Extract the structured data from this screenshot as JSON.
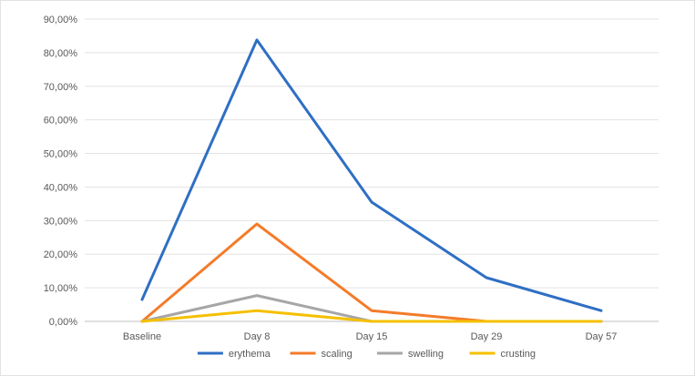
{
  "chart_data": {
    "type": "line",
    "title": "",
    "xlabel": "",
    "ylabel": "",
    "categories": [
      "Baseline",
      "Day 8",
      "Day 15",
      "Day 29",
      "Day 57"
    ],
    "ylim": [
      0,
      90
    ],
    "ytick_labels": [
      "0,00%",
      "10,00%",
      "20,00%",
      "30,00%",
      "40,00%",
      "50,00%",
      "60,00%",
      "70,00%",
      "80,00%",
      "90,00%"
    ],
    "grid": true,
    "legend_position": "bottom",
    "series": [
      {
        "name": "erythema",
        "color": "#2f6fc4",
        "values": [
          6.5,
          83.8,
          35.5,
          13.0,
          3.2
        ]
      },
      {
        "name": "scaling",
        "color": "#f47b2a",
        "values": [
          0.0,
          29.0,
          3.2,
          0.0,
          0.0
        ]
      },
      {
        "name": "swelling",
        "color": "#a6a6a6",
        "values": [
          0.0,
          7.7,
          0.0,
          0.0,
          0.0
        ]
      },
      {
        "name": "crusting",
        "color": "#f5c000",
        "values": [
          0.0,
          3.2,
          0.0,
          0.0,
          0.0
        ]
      }
    ]
  }
}
